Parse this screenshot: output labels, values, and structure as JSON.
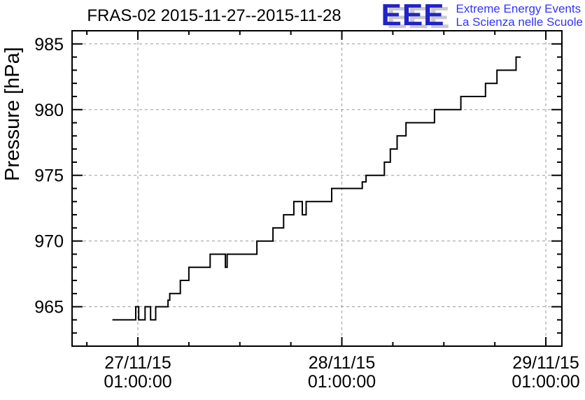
{
  "chart": {
    "title": "FRAS-02 2015-11-27--2015-11-28",
    "y_axis_title": "Pressure [hPa]"
  },
  "logo": {
    "acronym": "EEE",
    "line1": "Extreme Energy Events",
    "line2": "La Scienza nelle Scuole",
    "acronym_color": "#2222cc",
    "shadow_color": "#c9c9c9",
    "text_color": "#3333ff"
  },
  "chart_data": {
    "type": "line",
    "step": true,
    "title": "FRAS-02 2015-11-27--2015-11-28",
    "xlabel": "",
    "ylabel": "Pressure [hPa]",
    "y_range": [
      962,
      986
    ],
    "x_range_hours": [
      -6.74,
      50.89
    ],
    "x_time_origin": "2015-11-27 00:00:00",
    "x_major_ticks": [
      {
        "t": 1,
        "label": "27/11/15\n01:00:00"
      },
      {
        "t": 25,
        "label": "28/11/15\n01:00:00"
      },
      {
        "t": 49,
        "label": "29/11/15\n01:00:00"
      }
    ],
    "x_minor_step_hours": 6,
    "y_major_ticks": [
      965,
      970,
      975,
      980,
      985
    ],
    "y_minor_step": 1,
    "grid": "dashed",
    "legend": "none",
    "colors": {
      "line": "#000000",
      "grid": "#999999"
    },
    "series": [
      {
        "name": "pressure_hPa",
        "points_t_hours_p_hPa": [
          [
            -2.0,
            964
          ],
          [
            0.75,
            965
          ],
          [
            1.1,
            964
          ],
          [
            1.85,
            965
          ],
          [
            2.5,
            964
          ],
          [
            3.1,
            965
          ],
          [
            4.55,
            965.5
          ],
          [
            4.75,
            966
          ],
          [
            6.0,
            967
          ],
          [
            7.0,
            968
          ],
          [
            9.5,
            969
          ],
          [
            11.3,
            968
          ],
          [
            11.5,
            969
          ],
          [
            15.0,
            970
          ],
          [
            16.9,
            971
          ],
          [
            18.15,
            972
          ],
          [
            19.35,
            973
          ],
          [
            20.35,
            972
          ],
          [
            20.8,
            973
          ],
          [
            23.8,
            974
          ],
          [
            27.4,
            974.5
          ],
          [
            27.85,
            975
          ],
          [
            30.0,
            976
          ],
          [
            30.7,
            977
          ],
          [
            31.5,
            978
          ],
          [
            32.55,
            979
          ],
          [
            35.9,
            980
          ],
          [
            39.0,
            981
          ],
          [
            41.9,
            982
          ],
          [
            43.25,
            983
          ],
          [
            45.5,
            984
          ]
        ],
        "end_t_hours": 46.05
      }
    ]
  }
}
